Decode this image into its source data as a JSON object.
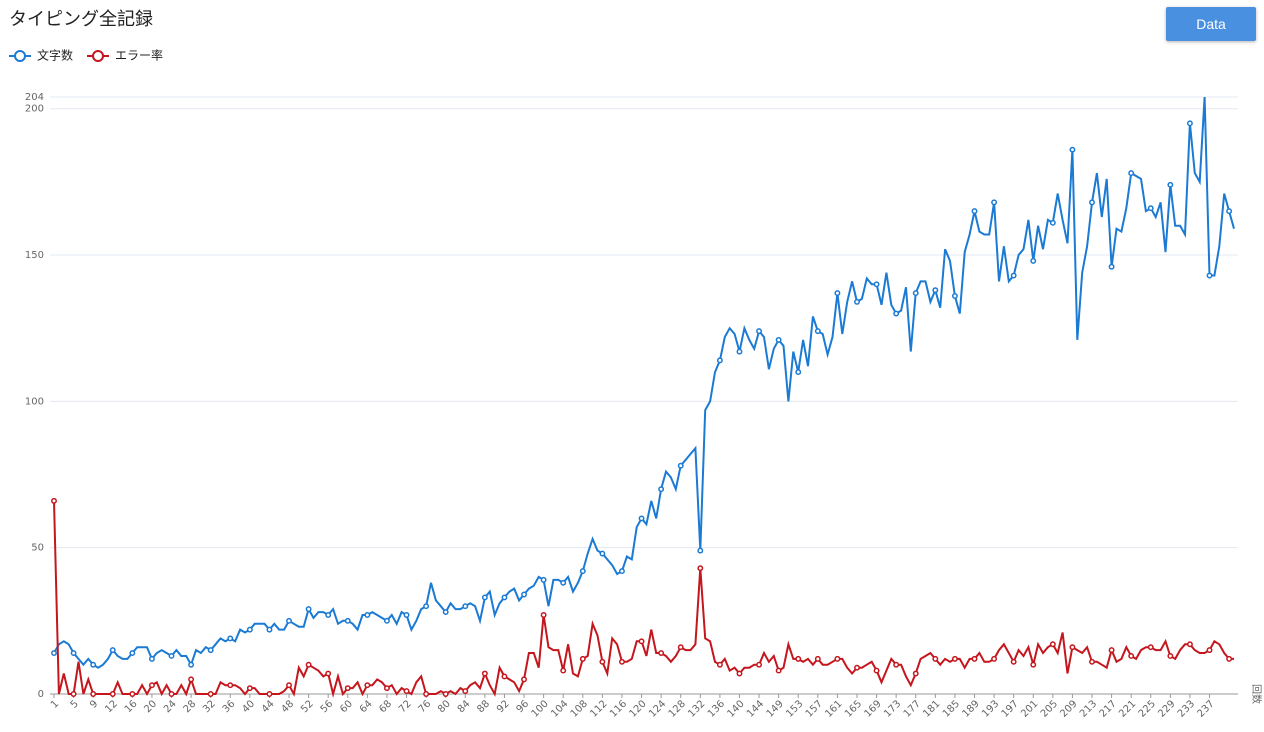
{
  "button_label": "Data",
  "chart_data": {
    "type": "line",
    "title": "タイピング全記録",
    "x_label": "回数",
    "categories": [
      1,
      null,
      null,
      null,
      5,
      null,
      null,
      null,
      9,
      null,
      null,
      null,
      12,
      null,
      null,
      null,
      16,
      null,
      null,
      null,
      20,
      null,
      null,
      null,
      24,
      null,
      null,
      null,
      28,
      null,
      null,
      null,
      32,
      null,
      null,
      null,
      36,
      null,
      null,
      null,
      40,
      null,
      null,
      null,
      44,
      null,
      null,
      null,
      48,
      null,
      null,
      null,
      52,
      null,
      null,
      null,
      56,
      null,
      null,
      null,
      60,
      null,
      null,
      null,
      64,
      null,
      null,
      null,
      68,
      null,
      null,
      null,
      72,
      null,
      null,
      null,
      76,
      null,
      null,
      null,
      80,
      null,
      null,
      null,
      84,
      null,
      null,
      null,
      88,
      null,
      null,
      null,
      92,
      null,
      null,
      null,
      96,
      null,
      null,
      null,
      100,
      null,
      null,
      null,
      104,
      null,
      null,
      null,
      108,
      null,
      null,
      null,
      112,
      null,
      null,
      null,
      116,
      null,
      null,
      null,
      120,
      null,
      null,
      null,
      124,
      null,
      null,
      null,
      128,
      null,
      null,
      null,
      132,
      null,
      null,
      null,
      136,
      null,
      null,
      null,
      140,
      null,
      null,
      null,
      144,
      null,
      null,
      null,
      149,
      null,
      null,
      null,
      153,
      null,
      null,
      null,
      157,
      null,
      null,
      null,
      161,
      null,
      null,
      null,
      165,
      null,
      null,
      null,
      169,
      null,
      null,
      null,
      173,
      null,
      null,
      null,
      177,
      null,
      null,
      null,
      181,
      null,
      null,
      null,
      185,
      null,
      null,
      null,
      189,
      null,
      null,
      null,
      193,
      null,
      null,
      null,
      197,
      null,
      null,
      null,
      201,
      null,
      null,
      null,
      205,
      null,
      null,
      null,
      209,
      null,
      null,
      null,
      213,
      null,
      null,
      null,
      217,
      null,
      null,
      null,
      221,
      null,
      null,
      null,
      225,
      null,
      null,
      null,
      229,
      null,
      null,
      null,
      233,
      null,
      null,
      null,
      237,
      null,
      null,
      null,
      null,
      null
    ],
    "series": [
      {
        "name": "文字数",
        "color": "#1a7ad4",
        "values": [
          14,
          17,
          18,
          17,
          14,
          12,
          10,
          12,
          10,
          9,
          10,
          12,
          15,
          13,
          12,
          12,
          14,
          16,
          16,
          16,
          12,
          14,
          15,
          14,
          13,
          15,
          13,
          13,
          10,
          15,
          14,
          16,
          15,
          17,
          19,
          18,
          19,
          18,
          22,
          21,
          22,
          24,
          24,
          24,
          22,
          24,
          22,
          22,
          25,
          24,
          23,
          23,
          29,
          26,
          28,
          28,
          27,
          29,
          24,
          25,
          25,
          24,
          22,
          27,
          27,
          28,
          27,
          26,
          25,
          27,
          24,
          28,
          27,
          22,
          25,
          29,
          30,
          38,
          32,
          30,
          28,
          31,
          29,
          29,
          30,
          31,
          30,
          25,
          33,
          35,
          27,
          31,
          33,
          35,
          36,
          32,
          34,
          36,
          37,
          40,
          39,
          30,
          39,
          39,
          38,
          40,
          35,
          38,
          42,
          48,
          53,
          49,
          48,
          46,
          44,
          41,
          42,
          47,
          46,
          57,
          60,
          58,
          66,
          60,
          70,
          76,
          74,
          70,
          78,
          80,
          82,
          84,
          49,
          97,
          100,
          110,
          114,
          122,
          125,
          123,
          117,
          125,
          121,
          118,
          124,
          122,
          111,
          118,
          121,
          119,
          100,
          117,
          110,
          121,
          112,
          129,
          124,
          123,
          116,
          122,
          137,
          123,
          134,
          141,
          134,
          135,
          142,
          140,
          140,
          133,
          144,
          133,
          130,
          131,
          139,
          117,
          137,
          141,
          141,
          134,
          138,
          132,
          152,
          148,
          136,
          130,
          151,
          157,
          165,
          158,
          157,
          157,
          168,
          141,
          153,
          141,
          143,
          150,
          152,
          162,
          148,
          160,
          152,
          162,
          161,
          171,
          162,
          154,
          186,
          121,
          144,
          153,
          168,
          178,
          163,
          176,
          146,
          159,
          158,
          166,
          178,
          177,
          176,
          165,
          166,
          163,
          168,
          151,
          174,
          160,
          160,
          157,
          195,
          178,
          175,
          204,
          143,
          143,
          153,
          171,
          165,
          159
        ]
      },
      {
        "name": "エラー率",
        "color": "#c4161c",
        "values": [
          66,
          0,
          7,
          0,
          0,
          11,
          0,
          5,
          0,
          0,
          0,
          0,
          0,
          4,
          0,
          0,
          0,
          0,
          3,
          0,
          3,
          4,
          0,
          3,
          0,
          0,
          3,
          0,
          5,
          0,
          0,
          0,
          0,
          0,
          4,
          3,
          3,
          3,
          2,
          0,
          2,
          2,
          0,
          0,
          0,
          0,
          0,
          1,
          3,
          0,
          9,
          6,
          10,
          9,
          8,
          6,
          7,
          0,
          6,
          0,
          2,
          2,
          4,
          0,
          3,
          3,
          5,
          4,
          2,
          3,
          0,
          2,
          1,
          0,
          4,
          6,
          0,
          0,
          0,
          1,
          0,
          1,
          0,
          2,
          1,
          3,
          4,
          2,
          7,
          3,
          0,
          9,
          6,
          5,
          4,
          1,
          5,
          14,
          14,
          9,
          27,
          16,
          15,
          15,
          8,
          17,
          7,
          6,
          12,
          13,
          24,
          20,
          11,
          7,
          19,
          17,
          11,
          11,
          12,
          18,
          18,
          13,
          22,
          14,
          14,
          13,
          11,
          13,
          16,
          15,
          15,
          17,
          43,
          19,
          18,
          11,
          10,
          12,
          8,
          9,
          7,
          9,
          9,
          10,
          10,
          14,
          11,
          13,
          8,
          9,
          17,
          12,
          12,
          11,
          12,
          10,
          12,
          10,
          10,
          11,
          12,
          12,
          9,
          7,
          9,
          9,
          10,
          11,
          8,
          4,
          8,
          12,
          10,
          10,
          6,
          3,
          7,
          12,
          13,
          14,
          12,
          10,
          12,
          11,
          12,
          12,
          9,
          12,
          12,
          14,
          11,
          11,
          12,
          15,
          17,
          14,
          11,
          15,
          13,
          16,
          10,
          17,
          14,
          16,
          17,
          14,
          21,
          7,
          16,
          15,
          14,
          16,
          11,
          11,
          10,
          9,
          15,
          11,
          12,
          16,
          13,
          12,
          15,
          16,
          16,
          15,
          15,
          18,
          13,
          12,
          15,
          17,
          17,
          15,
          14,
          14,
          15,
          18,
          17,
          14,
          12,
          12
        ]
      }
    ],
    "ylim": [
      0,
      204
    ],
    "yticks": [
      0,
      50,
      100,
      150,
      200,
      204
    ],
    "grid": true,
    "legend": "top-left"
  }
}
